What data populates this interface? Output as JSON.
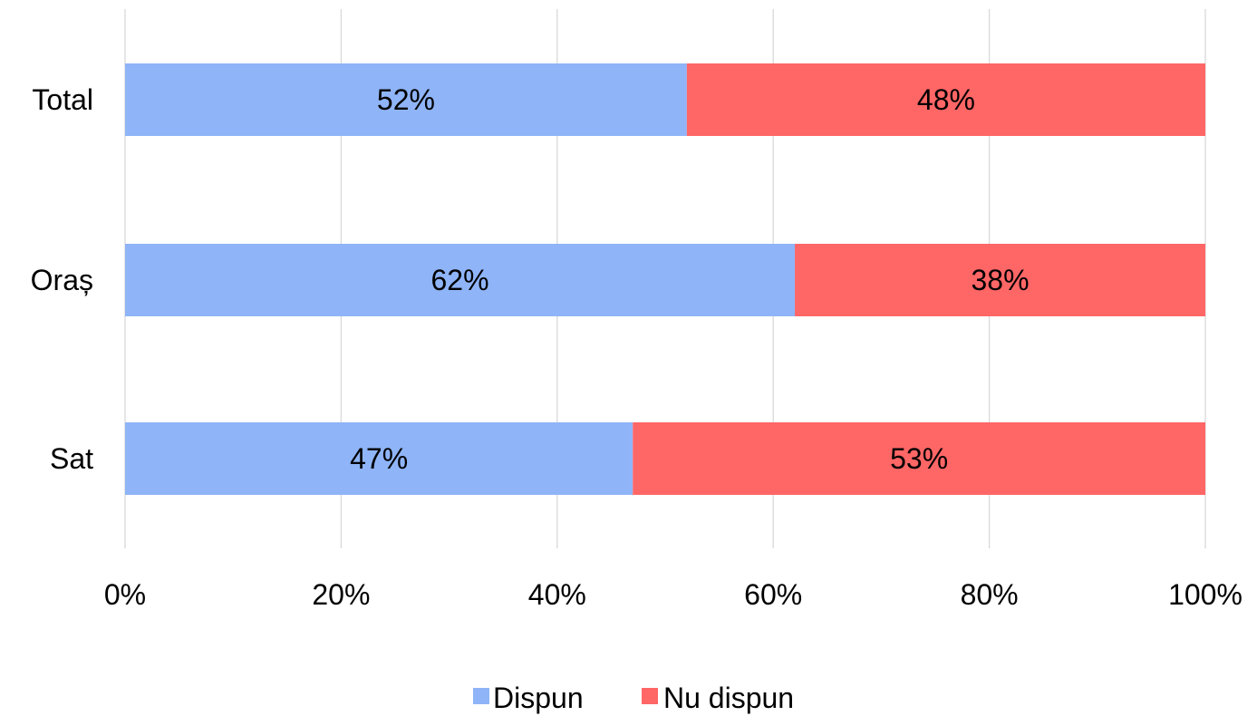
{
  "chart_data": {
    "type": "bar",
    "orientation": "horizontal",
    "stacked": "percent",
    "categories": [
      "Total",
      "Oraș",
      "Sat"
    ],
    "series": [
      {
        "name": "Dispun",
        "values": [
          52,
          62,
          47
        ],
        "labels": [
          "52%",
          "62%",
          "47%"
        ],
        "color": "#8fb4f7"
      },
      {
        "name": "Nu dispun",
        "values": [
          48,
          38,
          53
        ],
        "labels": [
          "48%",
          "38%",
          "53%"
        ],
        "color": "#ff6666"
      }
    ],
    "x_ticks": [
      "0%",
      "20%",
      "40%",
      "60%",
      "80%",
      "100%"
    ],
    "xlim": [
      0,
      100
    ],
    "grid": true,
    "legend_position": "bottom"
  }
}
